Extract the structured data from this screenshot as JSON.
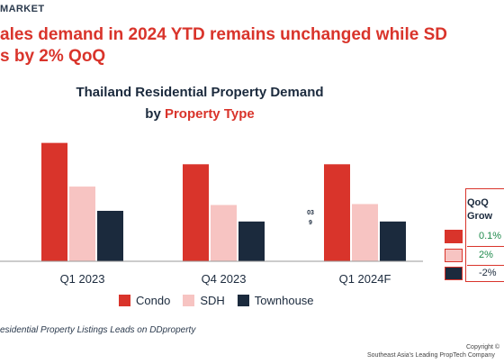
{
  "header": {
    "kicker": "MARKET",
    "headline_line1": "ales demand in 2024 YTD remains unchanged while SD",
    "headline_line2": "s by 2% QoQ"
  },
  "chart_data": {
    "type": "bar",
    "title_line1": "Thailand Residential Property Demand",
    "title_prefix": "by ",
    "title_accent": "Property Type",
    "categories": [
      "Q1 2023",
      "Q4 2023",
      "Q1 2024F"
    ],
    "series": [
      {
        "name": "Condo",
        "color": "#d9342b",
        "values": [
          122,
          100,
          100
        ]
      },
      {
        "name": "SDH",
        "color": "#f7c4c2",
        "values": [
          77,
          58,
          59
        ]
      },
      {
        "name": "Townhouse",
        "color": "#1b2a3d",
        "values": [
          52,
          41,
          41
        ]
      }
    ],
    "ylim": [
      0,
      130
    ],
    "grid": false,
    "legend": "bottom",
    "stray_label": [
      "03",
      "9"
    ]
  },
  "qoq_table": {
    "header": [
      "QoQ",
      "Grow"
    ],
    "rows": [
      {
        "value": "0.1%",
        "value_color": "#1f8a4c",
        "swatch": "#d9342b"
      },
      {
        "value": "2%",
        "value_color": "#1f8a4c",
        "swatch": "#f7c4c2"
      },
      {
        "value": "-2%",
        "value_color": "#1b2a3d",
        "swatch": "#1b2a3d"
      }
    ]
  },
  "footer": {
    "source": "esidential Property Listings Leads on DDproperty",
    "copyright_line1": "Copyright ©",
    "copyright_line2": "Southeast Asia's Leading PropTech Company"
  }
}
